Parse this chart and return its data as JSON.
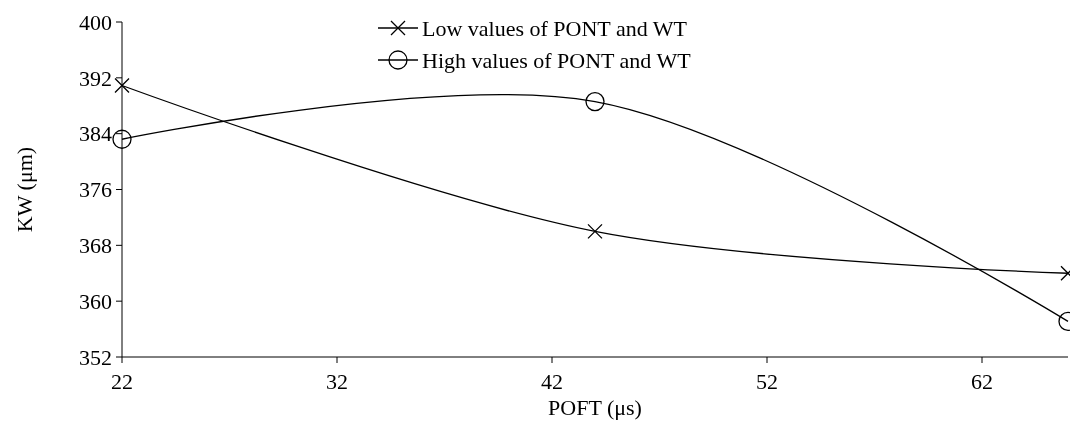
{
  "chart_data": {
    "type": "line",
    "xlabel": "POFT (μs)",
    "ylabel": "KW (μm)",
    "x": [
      22,
      44,
      66
    ],
    "xlim": [
      22,
      66
    ],
    "xticks": [
      22,
      32,
      42,
      52,
      62
    ],
    "ylim": [
      352,
      400
    ],
    "yticks": [
      352,
      360,
      368,
      376,
      384,
      392,
      400
    ],
    "grid": false,
    "legend": "top",
    "line_style": "solid",
    "series": [
      {
        "name": "Low values of PONT and WT",
        "color": "#000000",
        "marker": "cross",
        "values": [
          390.9,
          370,
          364
        ]
      },
      {
        "name": "High values of PONT and WT",
        "color": "#000000",
        "marker": "circle",
        "values": [
          383.2,
          388.6,
          357.1
        ]
      }
    ]
  }
}
